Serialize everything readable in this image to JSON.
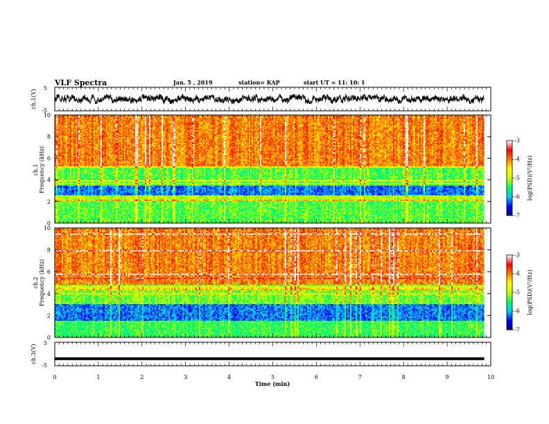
{
  "header": {
    "title": "VLF Spectra",
    "date": "Jan. 5 , 2019",
    "station": "station= KAP",
    "start": "start UT = 11: 10: 1"
  },
  "chart_data": [
    {
      "type": "line",
      "name": "ch1-waveform",
      "ylabel": "ch.1(V)",
      "ylim": [
        -5,
        5
      ],
      "yticks": [
        "5",
        "-5"
      ],
      "xlim": [
        0,
        10
      ],
      "series": [
        {
          "x_range": [
            0,
            9.85
          ],
          "approx_level": 0,
          "amplitude_range": [
            -2,
            2
          ]
        }
      ]
    },
    {
      "type": "heatmap",
      "name": "ch1-spectrogram",
      "ylabel": "ch.1 Frequency (kHz)",
      "ylim": [
        0,
        10
      ],
      "yticks": [
        "0",
        "2",
        "4",
        "6",
        "8",
        "10"
      ],
      "xlim": [
        0,
        9.85
      ],
      "colorbar": {
        "label": "log(PSD)(V²/Hz)",
        "range": [
          -7,
          -3
        ],
        "ticks": [
          "-3",
          "-4",
          "-5",
          "-6",
          "-7"
        ]
      },
      "bands_khz": [
        {
          "from": 0,
          "to": 2,
          "level": -5.3
        },
        {
          "from": 2,
          "to": 2.5,
          "level": -5.0
        },
        {
          "from": 2.5,
          "to": 3.4,
          "level": -6.2
        },
        {
          "from": 3.4,
          "to": 5.3,
          "level": -5.3
        },
        {
          "from": 5.3,
          "to": 10,
          "level": -4.0
        }
      ]
    },
    {
      "type": "heatmap",
      "name": "ch2-spectrogram",
      "ylabel": "ch.2 Frequency (kHz)",
      "ylim": [
        0,
        10
      ],
      "yticks": [
        "0",
        "2",
        "4",
        "6",
        "8",
        "10"
      ],
      "xlim": [
        0,
        9.85
      ],
      "colorbar": {
        "label": "log(PSD)(V²/Hz)",
        "range": [
          -7,
          -3
        ],
        "ticks": [
          "-3",
          "-4",
          "-5",
          "-6",
          "-7"
        ]
      },
      "bands_khz": [
        {
          "from": 0,
          "to": 1.5,
          "level": -5.4
        },
        {
          "from": 1.5,
          "to": 3.1,
          "level": -6.2
        },
        {
          "from": 3.1,
          "to": 4.8,
          "level": -5.2
        },
        {
          "from": 4.8,
          "to": 10,
          "level": -4.0
        }
      ]
    },
    {
      "type": "line",
      "name": "ch3-waveform",
      "ylabel": "ch.3(V)",
      "ylim": [
        -5,
        5
      ],
      "yticks": [
        "5",
        "-5"
      ],
      "xlim": [
        0,
        10
      ],
      "series": [
        {
          "x_range": [
            0,
            9.85
          ],
          "approx_level": -2
        }
      ]
    }
  ],
  "xaxis": {
    "label": "Time (min)",
    "ticks": [
      "0",
      "1",
      "2",
      "3",
      "4",
      "5",
      "6",
      "7",
      "8",
      "9",
      "10"
    ],
    "range": [
      0,
      10
    ]
  },
  "colors": {
    "colormap": [
      "#000080",
      "#0000ff",
      "#00c8ff",
      "#00ff64",
      "#c8ff00",
      "#ffff00",
      "#ff8000",
      "#ff0000",
      "#ffffff"
    ]
  }
}
